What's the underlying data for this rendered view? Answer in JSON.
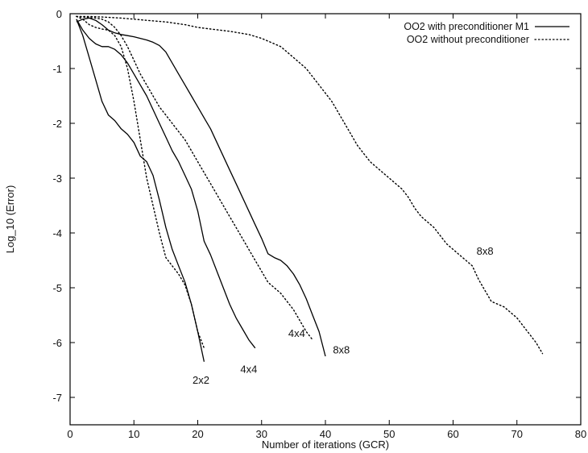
{
  "chart_data": {
    "type": "line",
    "xlabel": "Number of iterations (GCR)",
    "ylabel": "Log_10 (Error)",
    "xlim": [
      0,
      80
    ],
    "ylim": [
      -7.5,
      0
    ],
    "xticks": [
      0,
      10,
      20,
      30,
      40,
      50,
      60,
      70,
      80
    ],
    "yticks": [
      0,
      -1,
      -2,
      -3,
      -4,
      -5,
      -6,
      -7
    ],
    "grid": false,
    "legend_position": "top-right",
    "legend": [
      {
        "label": "OO2 with preconditioner M1",
        "style": "solid"
      },
      {
        "label": "OO2 without preconditioner",
        "style": "dotted"
      }
    ],
    "series": [
      {
        "legend": "OO2 with preconditioner M1",
        "style": "solid",
        "label": "2x2",
        "x": [
          1,
          2,
          3,
          4,
          5,
          6,
          7,
          8,
          9,
          10,
          11,
          12,
          13,
          14,
          15,
          16,
          17,
          18,
          19,
          20,
          21
        ],
        "y": [
          -0.1,
          -0.4,
          -0.8,
          -1.2,
          -1.6,
          -1.85,
          -1.95,
          -2.1,
          -2.2,
          -2.35,
          -2.6,
          -2.7,
          -2.95,
          -3.4,
          -3.9,
          -4.3,
          -4.6,
          -4.9,
          -5.3,
          -5.8,
          -6.35
        ]
      },
      {
        "legend": "OO2 with preconditioner M1",
        "style": "solid",
        "label": "4x4",
        "x": [
          1,
          2,
          3,
          4,
          5,
          6,
          7,
          8,
          9,
          10,
          11,
          12,
          13,
          14,
          15,
          16,
          17,
          18,
          19,
          20,
          21,
          22,
          23,
          24,
          25,
          26,
          27,
          28,
          29
        ],
        "y": [
          -0.1,
          -0.3,
          -0.45,
          -0.55,
          -0.6,
          -0.6,
          -0.65,
          -0.75,
          -0.9,
          -1.1,
          -1.3,
          -1.5,
          -1.75,
          -2.0,
          -2.25,
          -2.5,
          -2.7,
          -2.95,
          -3.2,
          -3.6,
          -4.15,
          -4.4,
          -4.7,
          -5.0,
          -5.3,
          -5.55,
          -5.75,
          -5.95,
          -6.1
        ]
      },
      {
        "legend": "OO2 with preconditioner M1",
        "style": "solid",
        "label": "8x8",
        "x": [
          1,
          2,
          3,
          4,
          5,
          6,
          7,
          8,
          9,
          10,
          11,
          12,
          13,
          14,
          15,
          16,
          17,
          18,
          19,
          20,
          21,
          22,
          23,
          24,
          25,
          26,
          27,
          28,
          29,
          30,
          31,
          32,
          33,
          34,
          35,
          36,
          37,
          38,
          39,
          40
        ],
        "y": [
          -0.15,
          -0.1,
          -0.08,
          -0.12,
          -0.2,
          -0.3,
          -0.35,
          -0.38,
          -0.4,
          -0.42,
          -0.45,
          -0.48,
          -0.52,
          -0.58,
          -0.7,
          -0.9,
          -1.1,
          -1.3,
          -1.5,
          -1.7,
          -1.9,
          -2.1,
          -2.35,
          -2.6,
          -2.85,
          -3.1,
          -3.35,
          -3.6,
          -3.85,
          -4.1,
          -4.38,
          -4.45,
          -4.5,
          -4.6,
          -4.75,
          -4.95,
          -5.2,
          -5.5,
          -5.8,
          -6.25
        ]
      },
      {
        "legend": "OO2 without preconditioner",
        "style": "dotted",
        "label": "",
        "x": [
          1,
          2,
          3,
          4,
          5,
          6,
          7,
          8,
          9,
          10,
          11,
          12,
          13,
          14,
          15,
          16,
          17,
          18,
          19,
          20,
          21
        ],
        "y": [
          -0.05,
          -0.1,
          -0.2,
          -0.25,
          -0.28,
          -0.3,
          -0.4,
          -0.6,
          -1.0,
          -1.6,
          -2.3,
          -3.0,
          -3.5,
          -4.0,
          -4.45,
          -4.6,
          -4.75,
          -4.95,
          -5.3,
          -5.8,
          -6.1
        ]
      },
      {
        "legend": "OO2 without preconditioner",
        "style": "dotted",
        "label": "4x4",
        "x": [
          1,
          2,
          3,
          4,
          5,
          6,
          7,
          8,
          9,
          10,
          11,
          12,
          13,
          14,
          15,
          16,
          17,
          18,
          19,
          20,
          21,
          22,
          23,
          24,
          25,
          26,
          27,
          28,
          29,
          30,
          31,
          32,
          33,
          34,
          35,
          36,
          37,
          38
        ],
        "y": [
          -0.05,
          -0.06,
          -0.07,
          -0.08,
          -0.1,
          -0.15,
          -0.25,
          -0.4,
          -0.6,
          -0.85,
          -1.1,
          -1.3,
          -1.5,
          -1.7,
          -1.85,
          -2.0,
          -2.15,
          -2.3,
          -2.5,
          -2.7,
          -2.9,
          -3.1,
          -3.3,
          -3.5,
          -3.7,
          -3.9,
          -4.1,
          -4.3,
          -4.5,
          -4.7,
          -4.9,
          -5.0,
          -5.1,
          -5.25,
          -5.4,
          -5.6,
          -5.8,
          -5.95
        ]
      },
      {
        "legend": "OO2 without preconditioner",
        "style": "dotted",
        "label": "8x8",
        "x": [
          1,
          3,
          5,
          8,
          10,
          12,
          15,
          18,
          20,
          22,
          25,
          28,
          30,
          33,
          35,
          37,
          38,
          39,
          40,
          41,
          42,
          43,
          44,
          45,
          46,
          47,
          48,
          49,
          50,
          51,
          52,
          53,
          54,
          55,
          56,
          57,
          58,
          59,
          60,
          61,
          62,
          63,
          64,
          65,
          66,
          67,
          68,
          69,
          70,
          71,
          72,
          73,
          74
        ],
        "y": [
          -0.05,
          -0.05,
          -0.06,
          -0.08,
          -0.1,
          -0.12,
          -0.15,
          -0.2,
          -0.25,
          -0.28,
          -0.32,
          -0.38,
          -0.45,
          -0.6,
          -0.8,
          -1.0,
          -1.15,
          -1.3,
          -1.45,
          -1.6,
          -1.8,
          -2.0,
          -2.2,
          -2.4,
          -2.55,
          -2.7,
          -2.8,
          -2.9,
          -3.0,
          -3.1,
          -3.2,
          -3.35,
          -3.55,
          -3.7,
          -3.8,
          -3.9,
          -4.05,
          -4.2,
          -4.3,
          -4.4,
          -4.5,
          -4.6,
          -4.85,
          -5.05,
          -5.25,
          -5.3,
          -5.35,
          -5.45,
          -5.55,
          -5.7,
          -5.85,
          -6.0,
          -6.2
        ]
      }
    ],
    "annotations": [
      {
        "text": "2x2",
        "x": 20.5,
        "y": -6.75
      },
      {
        "text": "4x4",
        "x": 28.0,
        "y": -6.55
      },
      {
        "text": "8x8",
        "x": 42.5,
        "y": -6.2
      },
      {
        "text": "4x4",
        "x": 35.5,
        "y": -5.9
      },
      {
        "text": "8x8",
        "x": 65.0,
        "y": -4.4
      }
    ]
  }
}
